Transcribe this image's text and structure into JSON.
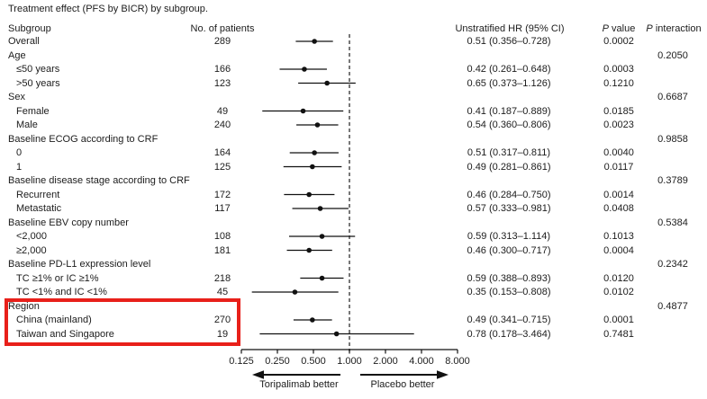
{
  "figure": {
    "title": "Treatment effect (PFS by BICR) by subgroup.",
    "columns": {
      "subgroup": "Subgroup",
      "patients": "No. of patients",
      "hr_ci": "Unstratified HR (95% CI)",
      "p_value": {
        "italic": "P",
        "rest": " value"
      },
      "p_interaction": {
        "italic": "P",
        "rest": " interaction"
      }
    }
  },
  "chart_data": {
    "type": "scatter",
    "variant": "forest-plot",
    "title": "Treatment effect (PFS by BICR) by subgroup.",
    "x_scale": "log2",
    "xlim": [
      0.125,
      8.0
    ],
    "x_ticks": [
      0.125,
      0.25,
      0.5,
      1.0,
      2.0,
      4.0,
      8.0
    ],
    "x_tick_labels": [
      "0.125",
      "0.250",
      "0.500",
      "1.000",
      "2.000",
      "4.000",
      "8.000"
    ],
    "reference_line": 1.0,
    "legend_left": "Toripalimab better",
    "legend_right": "Placebo better",
    "rows": [
      {
        "label": "Overall",
        "indent": false,
        "n": "289",
        "hr": 0.51,
        "lo": 0.356,
        "hi": 0.728,
        "hr_text": "0.51 (0.356–0.728)",
        "p": "0.0002",
        "p_int": ""
      },
      {
        "label": "Age",
        "indent": false,
        "n": "",
        "hr": null,
        "lo": null,
        "hi": null,
        "hr_text": "",
        "p": "",
        "p_int": "0.2050"
      },
      {
        "label": "≤50 years",
        "indent": true,
        "n": "166",
        "hr": 0.42,
        "lo": 0.261,
        "hi": 0.648,
        "hr_text": "0.42 (0.261–0.648)",
        "p": "0.0003",
        "p_int": ""
      },
      {
        "label": ">50 years",
        "indent": true,
        "n": "123",
        "hr": 0.65,
        "lo": 0.373,
        "hi": 1.126,
        "hr_text": "0.65 (0.373–1.126)",
        "p": "0.1210",
        "p_int": ""
      },
      {
        "label": "Sex",
        "indent": false,
        "n": "",
        "hr": null,
        "lo": null,
        "hi": null,
        "hr_text": "",
        "p": "",
        "p_int": "0.6687"
      },
      {
        "label": "Female",
        "indent": true,
        "n": "49",
        "hr": 0.41,
        "lo": 0.187,
        "hi": 0.889,
        "hr_text": "0.41 (0.187–0.889)",
        "p": "0.0185",
        "p_int": ""
      },
      {
        "label": "Male",
        "indent": true,
        "n": "240",
        "hr": 0.54,
        "lo": 0.36,
        "hi": 0.806,
        "hr_text": "0.54 (0.360–0.806)",
        "p": "0.0023",
        "p_int": ""
      },
      {
        "label": "Baseline ECOG according to CRF",
        "indent": false,
        "n": "",
        "hr": null,
        "lo": null,
        "hi": null,
        "hr_text": "",
        "p": "",
        "p_int": "0.9858"
      },
      {
        "label": "0",
        "indent": true,
        "n": "164",
        "hr": 0.51,
        "lo": 0.317,
        "hi": 0.811,
        "hr_text": "0.51 (0.317–0.811)",
        "p": "0.0040",
        "p_int": ""
      },
      {
        "label": "1",
        "indent": true,
        "n": "125",
        "hr": 0.49,
        "lo": 0.281,
        "hi": 0.861,
        "hr_text": "0.49 (0.281–0.861)",
        "p": "0.0117",
        "p_int": ""
      },
      {
        "label": "Baseline disease stage according to CRF",
        "indent": false,
        "n": "",
        "hr": null,
        "lo": null,
        "hi": null,
        "hr_text": "",
        "p": "",
        "p_int": "0.3789"
      },
      {
        "label": "Recurrent",
        "indent": true,
        "n": "172",
        "hr": 0.46,
        "lo": 0.284,
        "hi": 0.75,
        "hr_text": "0.46 (0.284–0.750)",
        "p": "0.0014",
        "p_int": ""
      },
      {
        "label": "Metastatic",
        "indent": true,
        "n": "117",
        "hr": 0.57,
        "lo": 0.333,
        "hi": 0.981,
        "hr_text": "0.57 (0.333–0.981)",
        "p": "0.0408",
        "p_int": ""
      },
      {
        "label": "Baseline EBV copy number",
        "indent": false,
        "n": "",
        "hr": null,
        "lo": null,
        "hi": null,
        "hr_text": "",
        "p": "",
        "p_int": "0.5384"
      },
      {
        "label": "<2,000",
        "indent": true,
        "n": "108",
        "hr": 0.59,
        "lo": 0.313,
        "hi": 1.114,
        "hr_text": "0.59 (0.313–1.114)",
        "p": "0.1013",
        "p_int": ""
      },
      {
        "label": "≥2,000",
        "indent": true,
        "n": "181",
        "hr": 0.46,
        "lo": 0.3,
        "hi": 0.717,
        "hr_text": "0.46 (0.300–0.717)",
        "p": "0.0004",
        "p_int": ""
      },
      {
        "label": "Baseline PD-L1 expression level",
        "indent": false,
        "n": "",
        "hr": null,
        "lo": null,
        "hi": null,
        "hr_text": "",
        "p": "",
        "p_int": "0.2342"
      },
      {
        "label": "TC ≥1% or IC ≥1%",
        "indent": true,
        "n": "218",
        "hr": 0.59,
        "lo": 0.388,
        "hi": 0.893,
        "hr_text": "0.59 (0.388–0.893)",
        "p": "0.0120",
        "p_int": ""
      },
      {
        "label": "TC <1% and IC <1%",
        "indent": true,
        "n": "45",
        "hr": 0.35,
        "lo": 0.153,
        "hi": 0.808,
        "hr_text": "0.35 (0.153–0.808)",
        "p": "0.0102",
        "p_int": ""
      },
      {
        "label": "Region",
        "indent": false,
        "n": "",
        "hr": null,
        "lo": null,
        "hi": null,
        "hr_text": "",
        "p": "",
        "p_int": "0.4877"
      },
      {
        "label": "China (mainland)",
        "indent": true,
        "n": "270",
        "hr": 0.49,
        "lo": 0.341,
        "hi": 0.715,
        "hr_text": "0.49 (0.341–0.715)",
        "p": "0.0001",
        "p_int": ""
      },
      {
        "label": "Taiwan and Singapore",
        "indent": true,
        "n": "19",
        "hr": 0.78,
        "lo": 0.178,
        "hi": 3.464,
        "hr_text": "0.78 (0.178–3.464)",
        "p": "0.7481",
        "p_int": ""
      }
    ]
  },
  "highlight": {
    "shape": "rectangle",
    "color": "#e8201a",
    "rows": [
      "Region",
      "China (mainland)",
      "Taiwan and Singapore"
    ]
  },
  "colors": {
    "text": "#1c1c1c",
    "plot_line": "#111111",
    "reference_dash": "#3f3f3f"
  }
}
